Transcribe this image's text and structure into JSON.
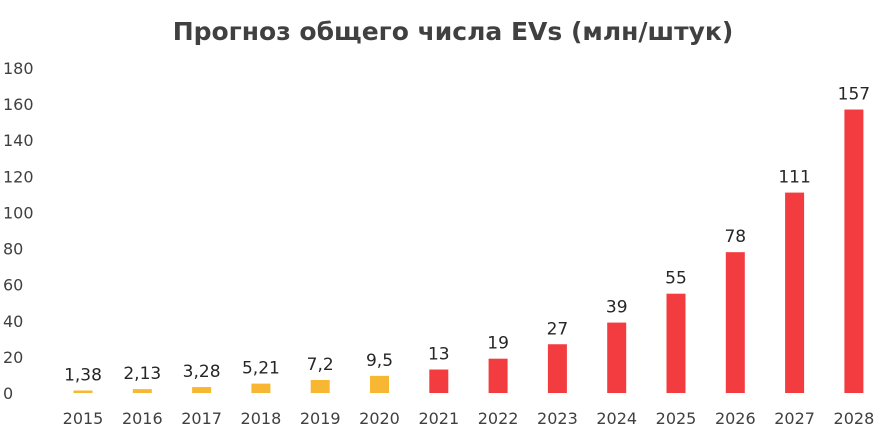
{
  "chart_data": {
    "type": "bar",
    "title": "Прогноз общего числа EVs (млн/штук)",
    "categories": [
      "2015",
      "2016",
      "2017",
      "2018",
      "2019",
      "2020",
      "2021",
      "2022",
      "2023",
      "2024",
      "2025",
      "2026",
      "2027",
      "2028"
    ],
    "values": [
      1.38,
      2.13,
      3.28,
      5.21,
      7.2,
      9.5,
      13,
      19,
      27,
      39,
      55,
      78,
      111,
      157
    ],
    "data_labels": [
      "1,38",
      "2,13",
      "3,28",
      "5,21",
      "7,2",
      "9,5",
      "13",
      "19",
      "27",
      "39",
      "55",
      "78",
      "111",
      "157"
    ],
    "ylim": [
      0,
      180
    ],
    "yticks": [
      "0",
      "20",
      "40",
      "60",
      "80",
      "100",
      "120",
      "140",
      "160",
      "180"
    ],
    "colors": {
      "historical": "#f7b733",
      "forecast": "#f23c3f"
    },
    "historical_count": 6,
    "grid": false,
    "legend": "none"
  }
}
